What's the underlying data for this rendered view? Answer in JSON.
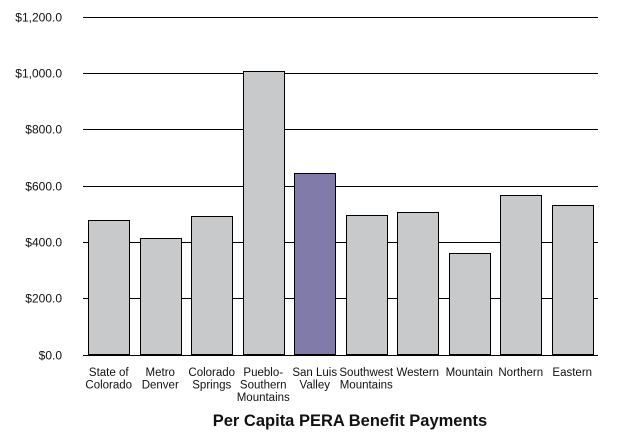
{
  "chart_data": {
    "type": "bar",
    "title": "Per Capita PERA Benefit Payments",
    "xlabel": "",
    "ylabel": "",
    "categories": [
      [
        "State of",
        "Colorado"
      ],
      [
        "Metro",
        "Denver"
      ],
      [
        "Colorado",
        "Springs"
      ],
      [
        "Pueblo-",
        "Southern",
        "Mountains"
      ],
      [
        "San Luis",
        "Valley"
      ],
      [
        "Southwest",
        "Mountains"
      ],
      [
        "Western"
      ],
      [
        "Mountain"
      ],
      [
        "Northern"
      ],
      [
        "Eastern"
      ]
    ],
    "values": [
      478,
      412,
      490,
      1008,
      645,
      496,
      505,
      360,
      566,
      530
    ],
    "highlight_index": 4,
    "ylim": [
      0,
      1200
    ],
    "yticks": [
      0,
      200,
      400,
      600,
      800,
      1000,
      1200
    ],
    "ytick_labels": [
      "$0.0",
      "$200.0",
      "$400.0",
      "$600.0",
      "$800.0",
      "$1,000.0",
      "$1,200.0"
    ],
    "grid": true,
    "legend": "none",
    "colors": {
      "bar": "#c8c9cb",
      "highlight": "#807ba8",
      "grid": "#000000"
    }
  }
}
